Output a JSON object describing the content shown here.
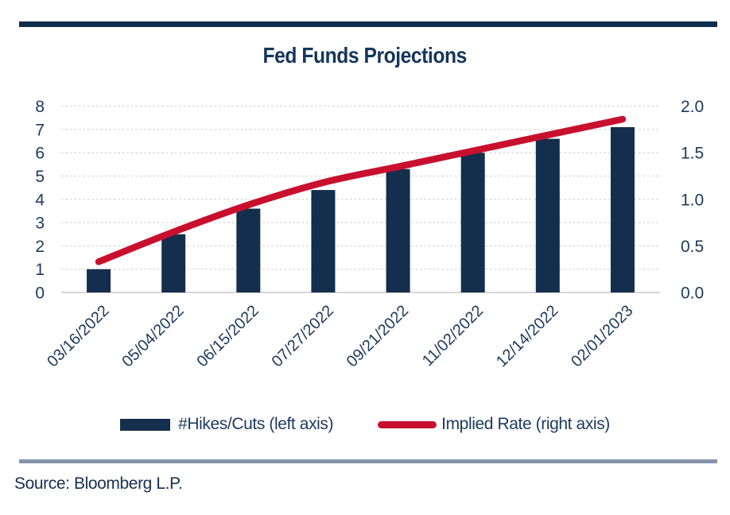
{
  "title": "Fed Funds Projections",
  "source": "Source: Bloomberg L.P.",
  "legend": {
    "bars_label": "#Hikes/Cuts (left axis)",
    "line_label": "Implied Rate (right axis)"
  },
  "colors": {
    "navy": "#142E4D",
    "red": "#C8102E",
    "axis_text": "#1C3A5C",
    "grid": "#D7D7D7",
    "baseline": "#C9C9C9",
    "top_rule": "#122C4B",
    "bottom_rule": "#8695AB"
  },
  "chart_data": {
    "type": "bar+line",
    "title": "Fed Funds Projections",
    "categories": [
      "03/16/2022",
      "05/04/2022",
      "06/15/2022",
      "07/27/2022",
      "09/21/2022",
      "11/02/2022",
      "12/14/2022",
      "02/01/2023"
    ],
    "series": [
      {
        "name": "#Hikes/Cuts (left axis)",
        "type": "bar",
        "axis": "left",
        "color": "#142E4D",
        "values": [
          1.0,
          2.5,
          3.6,
          4.4,
          5.3,
          6.0,
          6.6,
          7.1
        ]
      },
      {
        "name": "Implied Rate (right axis)",
        "type": "line",
        "axis": "right",
        "color": "#C8102E",
        "values": [
          0.33,
          0.65,
          0.94,
          1.18,
          1.35,
          1.52,
          1.69,
          1.86
        ]
      }
    ],
    "left_axis": {
      "min": 0,
      "max": 8,
      "tick_labels": [
        "0",
        "1",
        "2",
        "3",
        "4",
        "5",
        "6",
        "7",
        "8"
      ]
    },
    "right_axis": {
      "min": 0.0,
      "max": 2.0,
      "tick_labels": [
        "0.0",
        "0.5",
        "1.0",
        "1.5",
        "2.0"
      ]
    },
    "grid": "horizontal-dashed",
    "legend_position": "bottom"
  }
}
